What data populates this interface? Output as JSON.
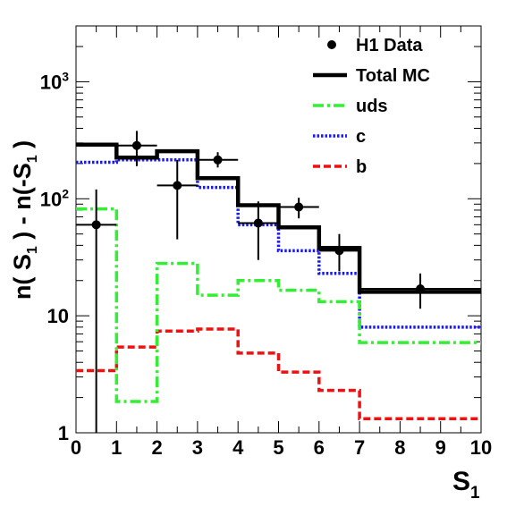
{
  "chart_data": {
    "type": "line",
    "log_y": true,
    "xlim": [
      0,
      10
    ],
    "ylim": [
      1,
      3000
    ],
    "x_ticks": [
      "0",
      "1",
      "2",
      "3",
      "4",
      "5",
      "6",
      "7",
      "8",
      "9",
      "10"
    ],
    "y_ticks": [
      {
        "value": 1,
        "label": "1"
      },
      {
        "value": 10,
        "label": "10"
      },
      {
        "value": 100,
        "label": "10",
        "exp": "2"
      },
      {
        "value": 1000,
        "label": "10",
        "exp": "3"
      }
    ],
    "xlabel": {
      "main": "S",
      "sub": "1"
    },
    "ylabel": {
      "p1": "n( S",
      "s1": "1",
      "p2": " ) - n(-S",
      "s2": "1",
      "p3": " )"
    },
    "legend_position": "top-right",
    "data_points": {
      "name": "H1 Data",
      "color": "#000000",
      "points": [
        {
          "x": 0.5,
          "xerr": 0.5,
          "y": 60,
          "ylo": 1,
          "yhi": 120
        },
        {
          "x": 1.5,
          "xerr": 0.5,
          "y": 285,
          "ylo": 190,
          "yhi": 380
        },
        {
          "x": 2.5,
          "xerr": 0.5,
          "y": 130,
          "ylo": 45,
          "yhi": 215
        },
        {
          "x": 3.5,
          "xerr": 0.5,
          "y": 215,
          "ylo": 185,
          "yhi": 250
        },
        {
          "x": 4.5,
          "xerr": 0.5,
          "y": 62,
          "ylo": 30,
          "yhi": 95
        },
        {
          "x": 5.5,
          "xerr": 0.5,
          "y": 85,
          "ylo": 68,
          "yhi": 102
        },
        {
          "x": 6.5,
          "xerr": 0.5,
          "y": 36,
          "ylo": 24,
          "yhi": 50
        },
        {
          "x": 8.5,
          "xerr": 1.5,
          "y": 17,
          "ylo": 11.5,
          "yhi": 23
        }
      ]
    },
    "series": [
      {
        "name": "Total MC",
        "color": "#000000",
        "style": "solid",
        "edges": [
          0,
          1,
          2,
          3,
          4,
          5,
          6,
          7,
          10
        ],
        "values": [
          290,
          225,
          255,
          150,
          88,
          57,
          38,
          16
        ]
      },
      {
        "name": "uds",
        "color": "#33ee33",
        "style": "dashdot",
        "edges": [
          0,
          1,
          2,
          3,
          4,
          5,
          6,
          7,
          10
        ],
        "values": [
          82,
          1.85,
          28,
          15,
          20,
          16.5,
          13.2,
          5.9
        ]
      },
      {
        "name": "c",
        "color": "#1a1aee",
        "style": "dotted",
        "edges": [
          0,
          1,
          2,
          3,
          4,
          5,
          6,
          7,
          10
        ],
        "values": [
          205,
          215,
          215,
          125,
          60,
          36,
          23,
          8
        ]
      },
      {
        "name": "b",
        "color": "#ee1111",
        "style": "dashed",
        "edges": [
          0,
          1,
          2,
          3,
          4,
          5,
          6,
          7,
          10
        ],
        "values": [
          3.4,
          5.4,
          7.4,
          7.7,
          4.8,
          3.3,
          2.3,
          1.32
        ]
      }
    ]
  }
}
